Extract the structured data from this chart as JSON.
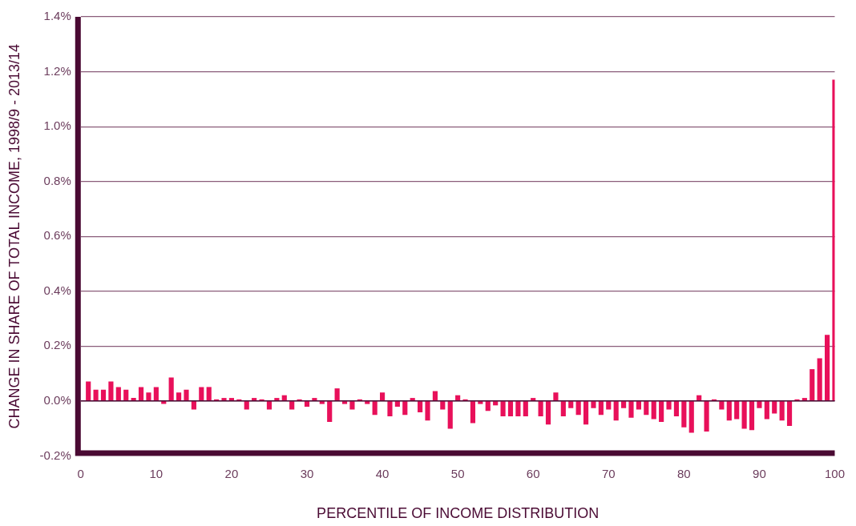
{
  "chart_data": {
    "type": "bar",
    "xlabel": "PERCENTILE OF INCOME DISTRIBUTION",
    "ylabel": "CHANGE IN SHARE OF TOTAL INCOME, 1998/9 - 2013/14",
    "x": [
      1,
      2,
      3,
      4,
      5,
      6,
      7,
      8,
      9,
      10,
      11,
      12,
      13,
      14,
      15,
      16,
      17,
      18,
      19,
      20,
      21,
      22,
      23,
      24,
      25,
      26,
      27,
      28,
      29,
      30,
      31,
      32,
      33,
      34,
      35,
      36,
      37,
      38,
      39,
      40,
      41,
      42,
      43,
      44,
      45,
      46,
      47,
      48,
      49,
      50,
      51,
      52,
      53,
      54,
      55,
      56,
      57,
      58,
      59,
      60,
      61,
      62,
      63,
      64,
      65,
      66,
      67,
      68,
      69,
      70,
      71,
      72,
      73,
      74,
      75,
      76,
      77,
      78,
      79,
      80,
      81,
      82,
      83,
      84,
      85,
      86,
      87,
      88,
      89,
      90,
      91,
      92,
      93,
      94,
      95,
      96,
      97,
      98,
      99,
      100
    ],
    "values": [
      0.07,
      0.04,
      0.04,
      0.07,
      0.05,
      0.04,
      0.01,
      0.05,
      0.03,
      0.05,
      -0.01,
      0.085,
      0.03,
      0.04,
      -0.03,
      0.05,
      0.05,
      0.005,
      0.01,
      0.01,
      0.005,
      -0.03,
      0.01,
      0.005,
      -0.03,
      0.01,
      0.02,
      -0.03,
      0.005,
      -0.02,
      0.01,
      -0.01,
      -0.075,
      0.045,
      -0.01,
      -0.03,
      0.005,
      -0.01,
      -0.05,
      0.03,
      -0.055,
      -0.02,
      -0.05,
      0.01,
      -0.04,
      -0.07,
      0.035,
      -0.03,
      -0.1,
      0.02,
      0.005,
      -0.08,
      -0.01,
      -0.035,
      -0.015,
      -0.055,
      -0.055,
      -0.055,
      -0.055,
      0.01,
      -0.055,
      -0.085,
      0.03,
      -0.055,
      -0.025,
      -0.05,
      -0.085,
      -0.025,
      -0.05,
      -0.03,
      -0.07,
      -0.025,
      -0.06,
      -0.03,
      -0.05,
      -0.065,
      -0.075,
      -0.03,
      -0.055,
      -0.095,
      -0.115,
      0.02,
      -0.11,
      0.005,
      -0.03,
      -0.07,
      -0.065,
      -0.1,
      -0.105,
      -0.025,
      -0.065,
      -0.045,
      -0.07,
      -0.09,
      0.005,
      0.01,
      0.115,
      0.155,
      0.24,
      1.17
    ],
    "color": "#e8105a",
    "xlim": [
      0,
      100
    ],
    "xticks": [
      0,
      10,
      20,
      30,
      40,
      50,
      60,
      70,
      80,
      90,
      100
    ],
    "ylim": [
      -0.2,
      1.4
    ],
    "yticks": [
      {
        "value": -0.2,
        "label": "-0.2%"
      },
      {
        "value": 0,
        "label": "0.0%"
      },
      {
        "value": 0.2,
        "label": "0.2%"
      },
      {
        "value": 0.4,
        "label": "0.4%"
      },
      {
        "value": 0.6,
        "label": "0.6%"
      },
      {
        "value": 0.8,
        "label": "0.8%"
      },
      {
        "value": 1.0,
        "label": "1.0%"
      },
      {
        "value": 1.2,
        "label": "1.2%"
      },
      {
        "value": 1.4,
        "label": "1.4%"
      }
    ],
    "grid": "y",
    "legend": false
  }
}
